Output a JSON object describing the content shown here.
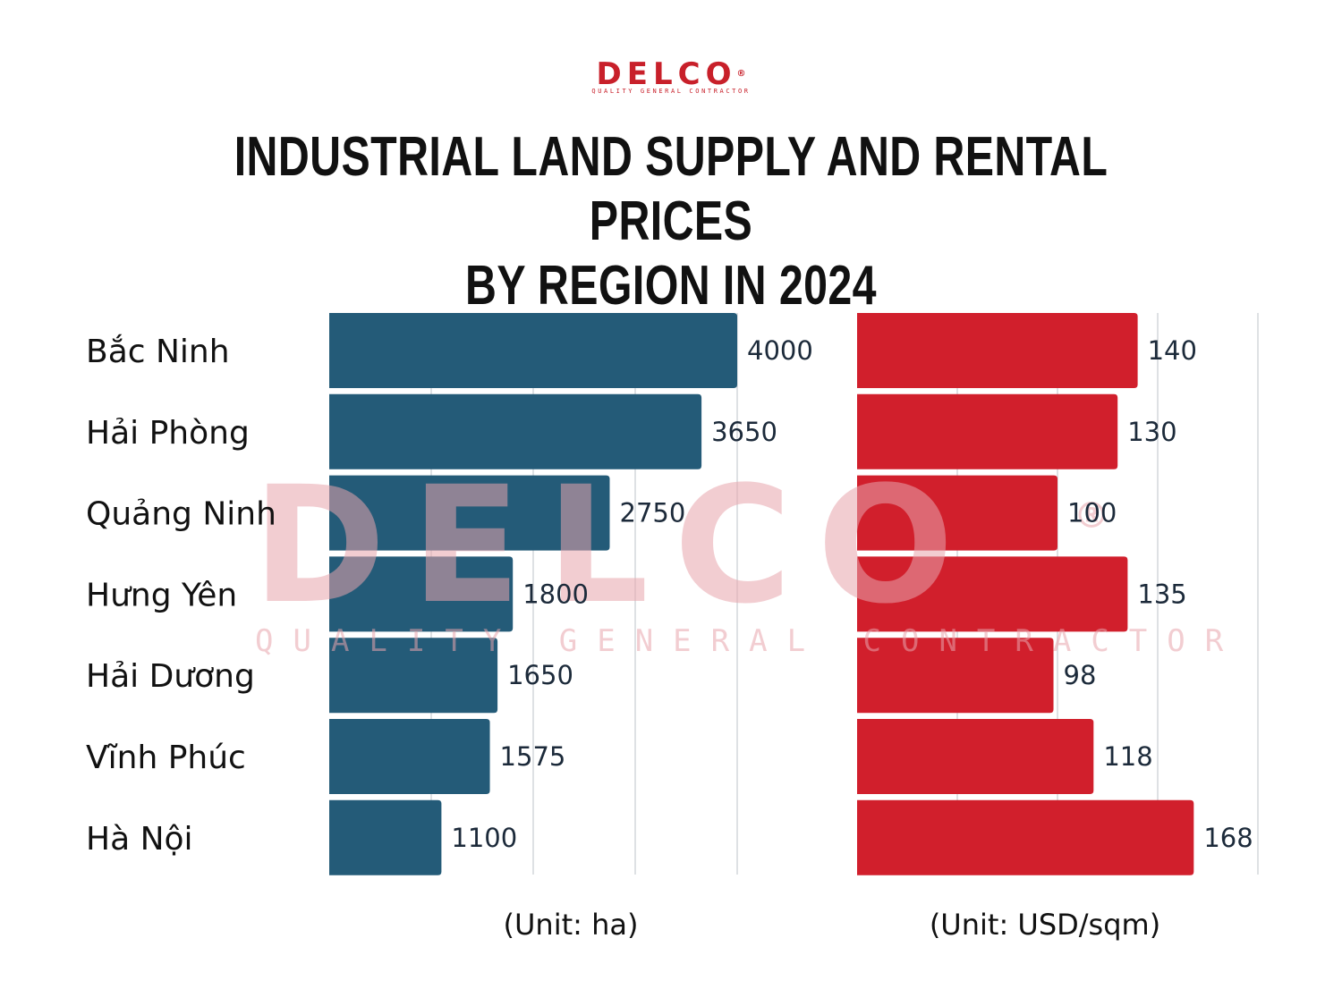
{
  "brand": {
    "name": "DELCO",
    "registered_mark": "®",
    "tagline": "QUALITY GENERAL CONTRACTOR",
    "color": "#c8202a"
  },
  "title_lines": [
    "INDUSTRIAL LAND SUPPLY AND RENTAL PRICES",
    "BY REGION IN 2024"
  ],
  "chart_data": [
    {
      "type": "bar",
      "orientation": "horizontal",
      "title": "Industrial land supply",
      "categories": [
        "Bắc Ninh",
        "Hải Phòng",
        "Quảng Ninh",
        "Hưng Yên",
        "Hải Dương",
        "Vĩnh Phúc",
        "Hà Nội"
      ],
      "values": [
        4000,
        3650,
        2750,
        1800,
        1650,
        1575,
        1100
      ],
      "xlabel": "(Unit: ha)",
      "ylabel": "",
      "xlim": [
        0,
        4000
      ],
      "gridlines": [
        1000,
        2000,
        3000,
        4000
      ],
      "grid": true,
      "color": "#245b78"
    },
    {
      "type": "bar",
      "orientation": "horizontal",
      "title": "Rental prices",
      "categories": [
        "Bắc Ninh",
        "Hải Phòng",
        "Quảng Ninh",
        "Hưng Yên",
        "Hải Dương",
        "Vĩnh Phúc",
        "Hà Nội"
      ],
      "values": [
        140,
        130,
        100,
        135,
        98,
        118,
        168
      ],
      "xlabel": "(Unit: USD/sqm)",
      "ylabel": "",
      "xlim": [
        0,
        200
      ],
      "gridlines": [
        50,
        100,
        150,
        200
      ],
      "grid": true,
      "color": "#d11f2c"
    }
  ],
  "watermark": {
    "text": "DELCO",
    "registered_mark": "®",
    "tagline": "QUALITY GENERAL CONTRACTOR"
  }
}
